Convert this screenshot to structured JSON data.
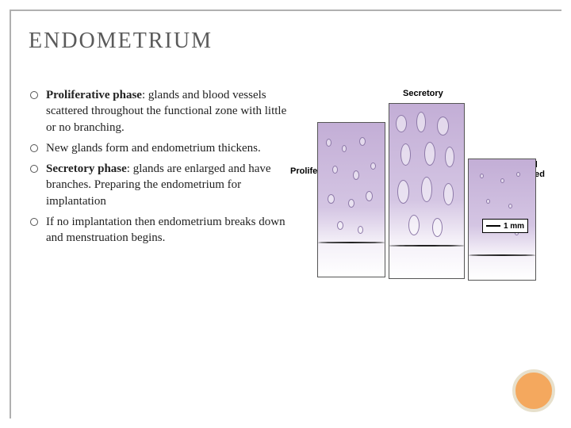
{
  "title": "ENDOMETRIUM",
  "bullets": [
    {
      "bold": "Proliferative phase",
      "rest": ": glands and blood vessels scattered throughout the functional zone with little or no branching."
    },
    {
      "bold": "",
      "rest": "New glands form and endometrium thickens."
    },
    {
      "bold": "Secretory phase",
      "rest": ": glands are enlarged and have branches. Preparing the endometrium for implantation"
    },
    {
      "bold": "",
      "rest": "If no implantation then endometrium breaks down and menstruation begins."
    }
  ],
  "figure": {
    "labels": {
      "proliferative": "Proliferative",
      "secretory": "Secretory",
      "asoprisnil": "Asoprisnil\nSuppressed",
      "scale": "1 mm"
    },
    "panel_bg_top": "#c3aed6",
    "panel_bg_bottom": "#ffffff",
    "border_color": "#555555"
  },
  "style": {
    "title_color": "#5a5a5a",
    "title_fontsize": 28,
    "body_fontsize": 15,
    "accent_circle": "#f4a85e",
    "accent_ring": "#e7e0cc",
    "frame_color": "#b0b0b0"
  }
}
